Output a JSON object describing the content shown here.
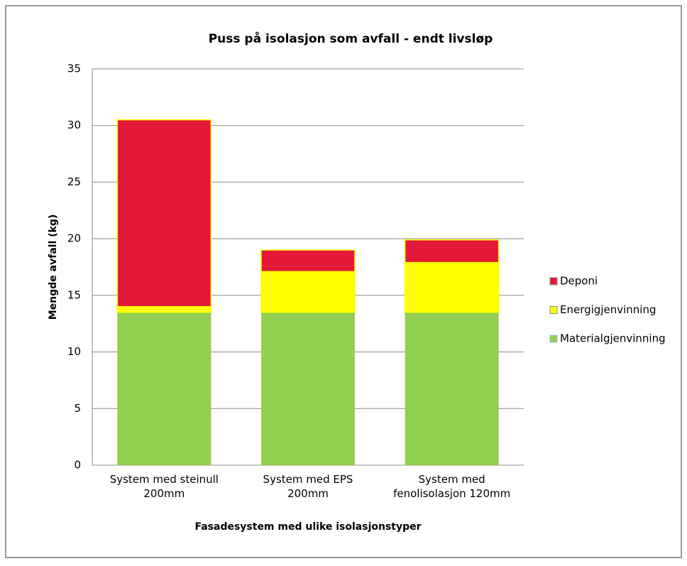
{
  "chart_data": {
    "type": "stacked_bar",
    "title": "Puss på isolasjon som avfall - endt livsløp",
    "x_label": "Fasadesystem med ulike isolasjonstyper",
    "y_label": "Mengde avfall (kg)",
    "categories": [
      "System med steinull\n200mm",
      "System med EPS\n200mm",
      "System med\nfenolisolasjon 120mm"
    ],
    "series": [
      {
        "name": "Materialgjenvinning",
        "color": "#92d050",
        "values": [
          13.5,
          13.5,
          13.5
        ]
      },
      {
        "name": "Energigjenvinning",
        "color": "#ffff00",
        "values": [
          0.5,
          3.6,
          4.4
        ]
      },
      {
        "name": "Deponi",
        "color": "#e31937",
        "values": [
          16.5,
          1.9,
          2.0
        ]
      }
    ],
    "ylim": [
      0,
      35
    ],
    "yticks": [
      0,
      5,
      10,
      15,
      20,
      25,
      30,
      35
    ],
    "grid": true,
    "legend": "right"
  }
}
